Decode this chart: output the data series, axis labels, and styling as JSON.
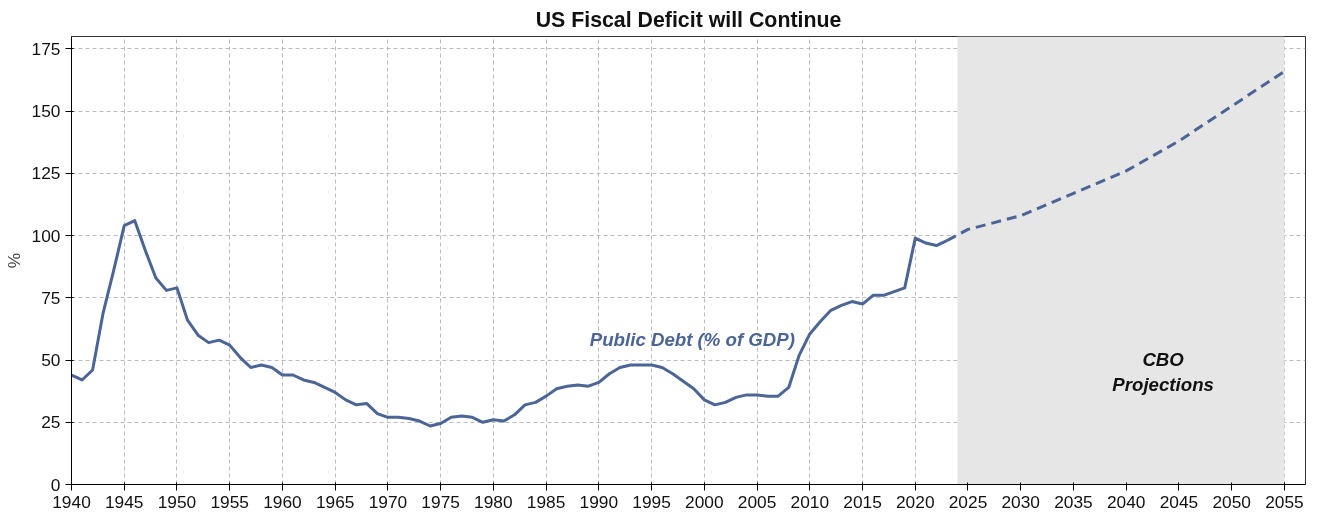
{
  "chart_data": {
    "type": "line",
    "title": "US Fiscal Deficit will Continue",
    "ylabel": "%",
    "xlim": [
      1940,
      2057
    ],
    "xticks": [
      1940,
      1945,
      1950,
      1955,
      1960,
      1965,
      1970,
      1975,
      1980,
      1985,
      1990,
      1995,
      2000,
      2005,
      2010,
      2015,
      2020,
      2025,
      2030,
      2035,
      2040,
      2045,
      2050,
      2055
    ],
    "ylim": [
      0,
      180
    ],
    "yticks": [
      0,
      25,
      50,
      75,
      100,
      125,
      150,
      175
    ],
    "grid": true,
    "series": [
      {
        "name": "Public Debt (% of GDP)",
        "color": "#4a6596",
        "line_style": "solid",
        "x": [
          1940,
          1941,
          1942,
          1943,
          1944,
          1945,
          1946,
          1947,
          1948,
          1949,
          1950,
          1951,
          1952,
          1953,
          1954,
          1955,
          1956,
          1957,
          1958,
          1959,
          1960,
          1961,
          1962,
          1963,
          1964,
          1965,
          1966,
          1967,
          1968,
          1969,
          1970,
          1971,
          1972,
          1973,
          1974,
          1975,
          1976,
          1977,
          1978,
          1979,
          1980,
          1981,
          1982,
          1983,
          1984,
          1985,
          1986,
          1987,
          1988,
          1989,
          1990,
          1991,
          1992,
          1993,
          1994,
          1995,
          1996,
          1997,
          1998,
          1999,
          2000,
          2001,
          2002,
          2003,
          2004,
          2005,
          2006,
          2007,
          2008,
          2009,
          2010,
          2011,
          2012,
          2013,
          2014,
          2015,
          2016,
          2017,
          2018,
          2019,
          2020,
          2021,
          2022,
          2023
        ],
        "values": [
          44,
          42,
          46,
          69,
          86,
          104,
          106,
          94,
          83,
          78,
          79,
          66,
          60,
          57,
          58,
          56,
          51,
          47,
          48,
          47,
          44,
          44,
          42,
          41,
          39,
          37,
          34,
          32,
          32.5,
          28.5,
          27,
          27,
          26.5,
          25.5,
          23.5,
          24.5,
          27,
          27.5,
          27,
          25,
          26,
          25.5,
          28,
          32,
          33,
          35.5,
          38.5,
          39.5,
          40,
          39.5,
          41,
          44.5,
          47,
          48,
          48,
          48,
          47,
          44.5,
          41.5,
          38.5,
          34,
          32,
          33,
          35,
          36,
          36,
          35.5,
          35.5,
          39,
          52,
          60.5,
          65.5,
          70,
          72,
          73.5,
          72.5,
          76,
          76,
          77.5,
          79,
          99,
          97,
          96,
          98
        ]
      },
      {
        "color": "#4a6596",
        "line_style": "dashed",
        "x": [
          2023,
          2025,
          2030,
          2035,
          2040,
          2045,
          2050,
          2055
        ],
        "values": [
          98,
          102.5,
          108,
          117,
          126,
          138,
          152,
          166
        ]
      }
    ],
    "bands": [
      {
        "axis": "x",
        "from": 2024,
        "to": 2055,
        "label": "CBO Projections",
        "color": "#e6e6e6"
      }
    ]
  }
}
